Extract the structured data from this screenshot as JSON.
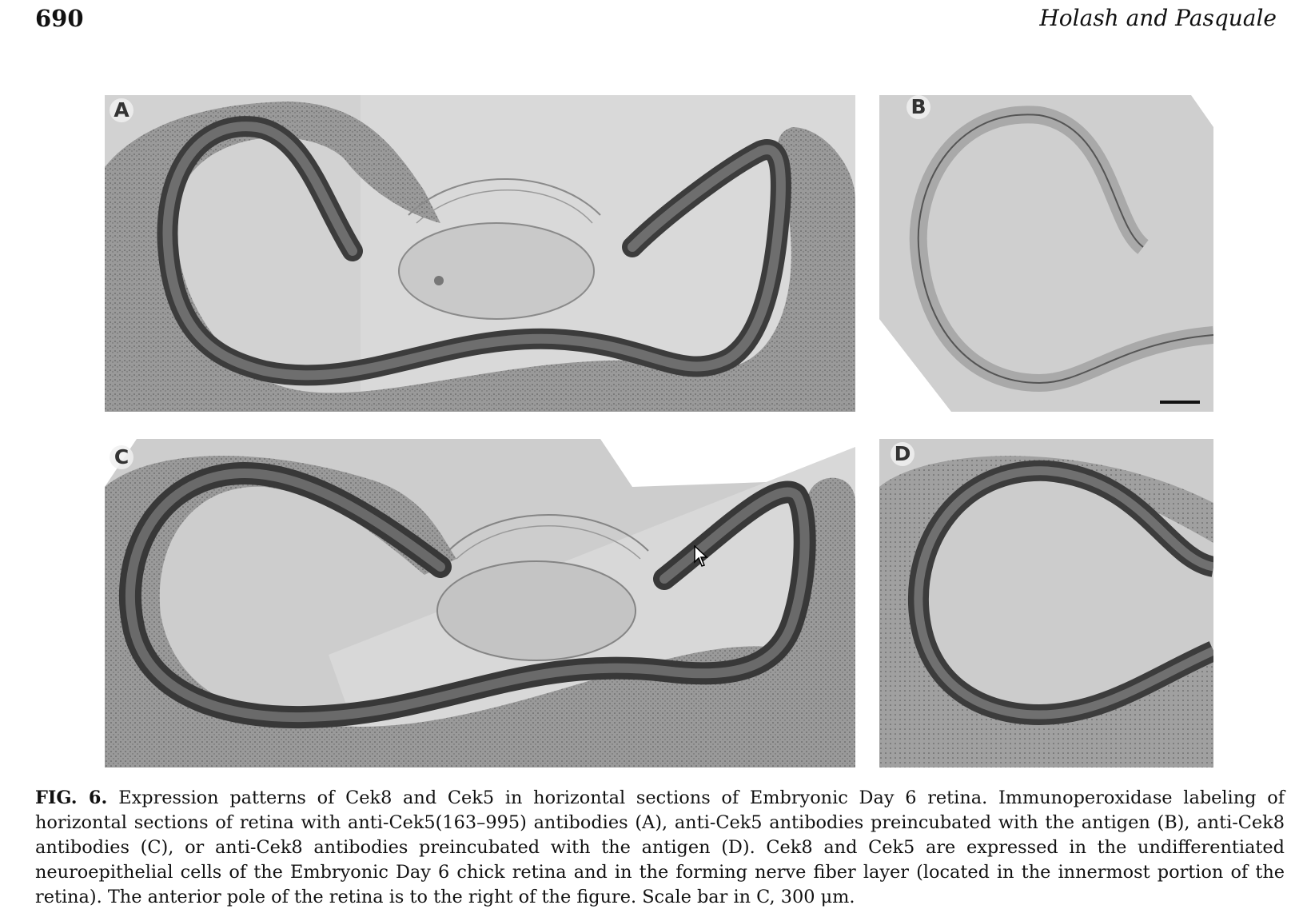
{
  "header": {
    "page_number": "690",
    "running_head": "Holash and Pasquale"
  },
  "panels": {
    "a": {
      "label": "A"
    },
    "b": {
      "label": "B"
    },
    "c": {
      "label": "C"
    },
    "d": {
      "label": "D"
    }
  },
  "caption": {
    "label": "FIG. 6.",
    "text": "Expression patterns of Cek8 and Cek5 in horizontal sections of Embryonic Day 6 retina. Immunoperoxidase labeling of horizontal sections of retina with anti-Cek5(163–995) antibodies (A), anti-Cek5 antibodies preincubated with the antigen (B), anti-Cek8 antibodies (C), or anti-Cek8 antibodies preincubated with the antigen (D). Cek8 and Cek5 are expressed in the undifferentiated neuroepithelial cells of the Embryonic Day 6 chick retina and in the forming nerve fiber layer (located in the innermost portion of the retina). The anterior pole of the retina is to the right of the figure. Scale bar in C, 300 μm."
  },
  "colors": {
    "tissue_dark": "#3c3c3c",
    "tissue_mid": "#8a8a8a",
    "background_gray": "#d6d6d6"
  },
  "icons": {
    "cursor": "arrow-cursor-icon"
  }
}
